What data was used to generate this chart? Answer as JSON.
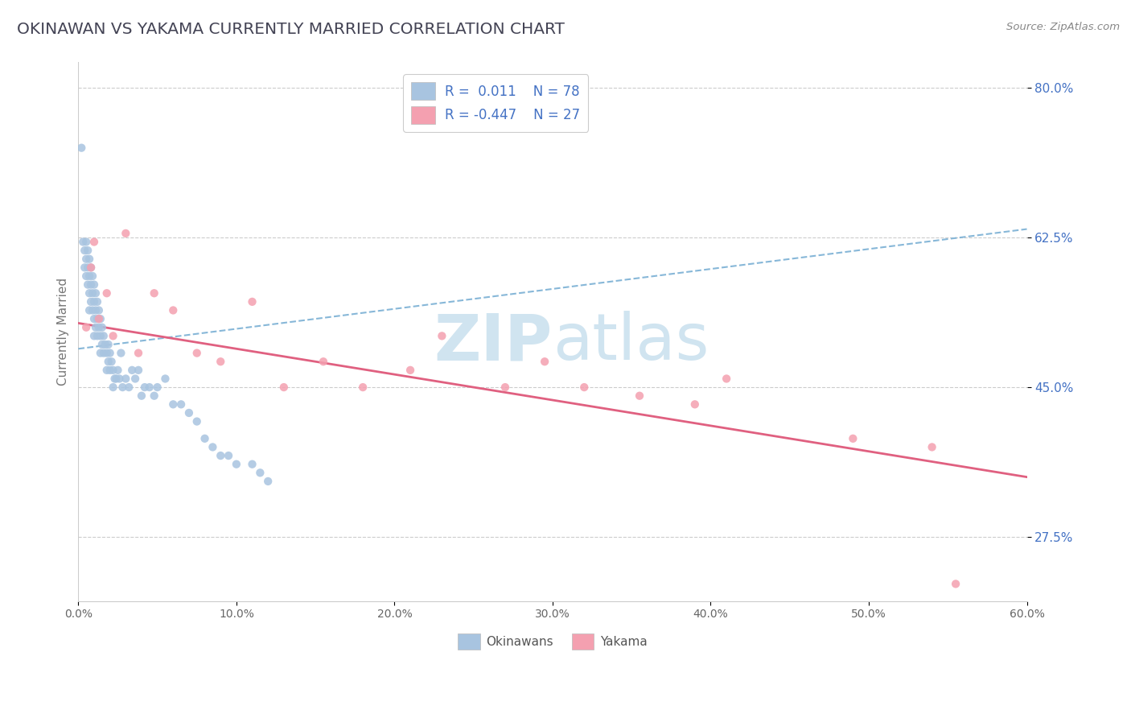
{
  "title": "OKINAWAN VS YAKAMA CURRENTLY MARRIED CORRELATION CHART",
  "source_text": "Source: ZipAtlas.com",
  "ylabel": "Currently Married",
  "xlim": [
    0.0,
    0.6
  ],
  "ylim": [
    0.2,
    0.83
  ],
  "yticks": [
    0.275,
    0.45,
    0.625,
    0.8
  ],
  "ytick_labels": [
    "27.5%",
    "45.0%",
    "62.5%",
    "80.0%"
  ],
  "xticks": [
    0.0,
    0.1,
    0.2,
    0.3,
    0.4,
    0.5,
    0.6
  ],
  "xtick_labels": [
    "0.0%",
    "10.0%",
    "20.0%",
    "30.0%",
    "40.0%",
    "50.0%",
    "60.0%"
  ],
  "okinawan_color": "#a8c4e0",
  "yakama_color": "#f4a0b0",
  "okinawan_R": 0.011,
  "okinawan_N": 78,
  "yakama_R": -0.447,
  "yakama_N": 27,
  "trend_blue_color": "#7ab0d4",
  "trend_pink_color": "#e06080",
  "legend_text_color": "#4472c4",
  "watermark_zip": "ZIP",
  "watermark_atlas": "atlas",
  "watermark_color": "#d0e4f0",
  "background_color": "#ffffff",
  "blue_trend_x": [
    0.0,
    0.6
  ],
  "blue_trend_y": [
    0.495,
    0.635
  ],
  "pink_trend_x": [
    0.0,
    0.6
  ],
  "pink_trend_y": [
    0.525,
    0.345
  ],
  "okinawan_scatter_x": [
    0.002,
    0.003,
    0.004,
    0.004,
    0.005,
    0.005,
    0.005,
    0.006,
    0.006,
    0.006,
    0.007,
    0.007,
    0.007,
    0.007,
    0.008,
    0.008,
    0.008,
    0.009,
    0.009,
    0.009,
    0.01,
    0.01,
    0.01,
    0.01,
    0.011,
    0.011,
    0.011,
    0.012,
    0.012,
    0.012,
    0.013,
    0.013,
    0.014,
    0.014,
    0.014,
    0.015,
    0.015,
    0.016,
    0.016,
    0.017,
    0.018,
    0.018,
    0.019,
    0.019,
    0.02,
    0.02,
    0.021,
    0.022,
    0.022,
    0.023,
    0.024,
    0.025,
    0.026,
    0.027,
    0.028,
    0.03,
    0.032,
    0.034,
    0.036,
    0.038,
    0.04,
    0.042,
    0.045,
    0.048,
    0.05,
    0.055,
    0.06,
    0.065,
    0.07,
    0.075,
    0.08,
    0.085,
    0.09,
    0.095,
    0.1,
    0.11,
    0.115,
    0.12
  ],
  "okinawan_scatter_y": [
    0.73,
    0.62,
    0.61,
    0.59,
    0.62,
    0.6,
    0.58,
    0.61,
    0.59,
    0.57,
    0.6,
    0.58,
    0.56,
    0.54,
    0.59,
    0.57,
    0.55,
    0.58,
    0.56,
    0.54,
    0.57,
    0.55,
    0.53,
    0.51,
    0.56,
    0.54,
    0.52,
    0.55,
    0.53,
    0.51,
    0.54,
    0.52,
    0.53,
    0.51,
    0.49,
    0.52,
    0.5,
    0.51,
    0.49,
    0.5,
    0.49,
    0.47,
    0.5,
    0.48,
    0.49,
    0.47,
    0.48,
    0.47,
    0.45,
    0.46,
    0.46,
    0.47,
    0.46,
    0.49,
    0.45,
    0.46,
    0.45,
    0.47,
    0.46,
    0.47,
    0.44,
    0.45,
    0.45,
    0.44,
    0.45,
    0.46,
    0.43,
    0.43,
    0.42,
    0.41,
    0.39,
    0.38,
    0.37,
    0.37,
    0.36,
    0.36,
    0.35,
    0.34
  ],
  "yakama_scatter_x": [
    0.005,
    0.008,
    0.01,
    0.013,
    0.018,
    0.022,
    0.03,
    0.038,
    0.048,
    0.06,
    0.075,
    0.09,
    0.11,
    0.13,
    0.155,
    0.18,
    0.21,
    0.23,
    0.27,
    0.295,
    0.32,
    0.355,
    0.39,
    0.41,
    0.49,
    0.54,
    0.555
  ],
  "yakama_scatter_y": [
    0.52,
    0.59,
    0.62,
    0.53,
    0.56,
    0.51,
    0.63,
    0.49,
    0.56,
    0.54,
    0.49,
    0.48,
    0.55,
    0.45,
    0.48,
    0.45,
    0.47,
    0.51,
    0.45,
    0.48,
    0.45,
    0.44,
    0.43,
    0.46,
    0.39,
    0.38,
    0.22
  ]
}
